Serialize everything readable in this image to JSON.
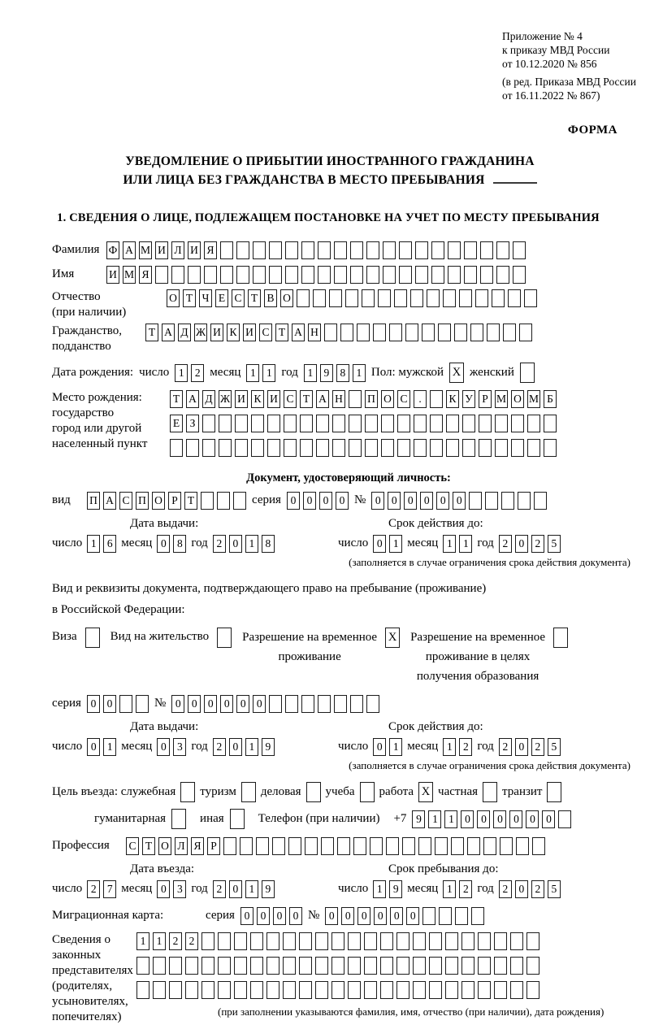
{
  "colors": {
    "ink": "#1c1c1c",
    "paper": "#ffffff"
  },
  "header": {
    "annex": [
      "Приложение № 4",
      "к приказу МВД России",
      "от 10.12.2020 № 856"
    ],
    "annex_note": [
      "(в ред. Приказа МВД России",
      "от 16.11.2022 № 867)"
    ],
    "forma": "ФОРМА"
  },
  "title": {
    "line1": "УВЕДОМЛЕНИЕ О ПРИБЫТИИ ИНОСТРАННОГО ГРАЖДАНИНА",
    "line2": "ИЛИ ЛИЦА БЕЗ ГРАЖДАНСТВА В МЕСТО ПРЕБЫВАНИЯ"
  },
  "section1_heading": "1. СВЕДЕНИЯ О ЛИЦЕ, ПОДЛЕЖАЩЕМ ПОСТАНОВКЕ НА УЧЕТ ПО МЕСТУ ПРЕБЫВАНИЯ",
  "labels": {
    "surname": "Фамилия",
    "name": "Имя",
    "patronymic": "Отчество",
    "patronymic2": "(при наличии)",
    "citizenship1": "Гражданство,",
    "citizenship2": "подданство",
    "birthdate": "Дата рождения:",
    "day": "число",
    "month": "месяц",
    "year": "год",
    "sex_male": "Пол: мужской",
    "sex_female": "женский",
    "birthplace1": "Место рождения:",
    "birthplace2": "государство",
    "birthplace3": "город или другой",
    "birthplace4": "населенный пункт",
    "id_doc_heading": "Документ, удостоверяющий личность:",
    "kind": "вид",
    "series": "серия",
    "number": "№",
    "issue_date": "Дата выдачи:",
    "valid_until": "Срок действия до:",
    "restriction_note": "(заполняется в случае ограничения срока действия документа)",
    "right_doc1": "Вид и реквизиты документа, подтверждающего право на пребывание (проживание)",
    "right_doc2": "в Российской Федерации:",
    "visa": "Виза",
    "residence_permit": "Вид на жительство",
    "temp_res1": "Разрешение на временное",
    "temp_res2": "проживание",
    "temp_edu1": "Разрешение на временное",
    "temp_edu2": "проживание в целях",
    "temp_edu3": "получения образования",
    "purpose": "Цель въезда: служебная",
    "tourism": "туризм",
    "business": "деловая",
    "study": "учеба",
    "work": "работа",
    "private": "частная",
    "transit": "транзит",
    "humanitarian": "гуманитарная",
    "other": "иная",
    "phone": "Телефон (при наличии)",
    "phone_prefix": "+7",
    "profession": "Профессия",
    "entry_date": "Дата въезда:",
    "stay_until": "Срок пребывания до:",
    "migration_card": "Миграционная карта:",
    "legal1": "Сведения о",
    "legal2": "законных",
    "legal3": "представителях",
    "legal4": "(родителях,",
    "legal5": "усыновителях,",
    "legal6": "попечителях)",
    "legal_note": "(при заполнении указываются фамилия, имя, отчество (при наличии), дата рождения)"
  },
  "fields": {
    "surname": {
      "value": "ФАМИЛИЯ",
      "length": 26
    },
    "name": {
      "value": "ИМЯ",
      "length": 26
    },
    "patronymic": {
      "value": "ОТЧЕСТВО",
      "length": 23
    },
    "citizenship": {
      "value": "ТАДЖИКИСТАН",
      "length": 24
    },
    "birth_day": {
      "value": "12",
      "length": 2
    },
    "birth_month": {
      "value": "11",
      "length": 2
    },
    "birth_year": {
      "value": "1981",
      "length": 4
    },
    "birthplace_row1": {
      "value": "ТАДЖИКИСТАН ПОС. КУРМОМБ",
      "length": 24
    },
    "birthplace_row2": {
      "value": "ЕЗ",
      "length": 24
    },
    "birthplace_row3": {
      "value": "",
      "length": 24
    },
    "doc_kind": {
      "value": "ПАСПОРТ",
      "length": 10
    },
    "doc_series": {
      "value": "0000",
      "length": 4
    },
    "doc_number": {
      "value": "000000",
      "length": 11
    },
    "doc_issue_day": {
      "value": "16",
      "length": 2
    },
    "doc_issue_month": {
      "value": "08",
      "length": 2
    },
    "doc_issue_year": {
      "value": "2018",
      "length": 4
    },
    "doc_valid_day": {
      "value": "01",
      "length": 2
    },
    "doc_valid_month": {
      "value": "11",
      "length": 2
    },
    "doc_valid_year": {
      "value": "2025",
      "length": 4
    },
    "perm_series": {
      "value": "00",
      "length": 4
    },
    "perm_number": {
      "value": "000000",
      "length": 13
    },
    "perm_issue_day": {
      "value": "01",
      "length": 2
    },
    "perm_issue_month": {
      "value": "03",
      "length": 2
    },
    "perm_issue_year": {
      "value": "2019",
      "length": 4
    },
    "perm_valid_day": {
      "value": "01",
      "length": 2
    },
    "perm_valid_month": {
      "value": "12",
      "length": 2
    },
    "perm_valid_year": {
      "value": "2025",
      "length": 4
    },
    "phone": {
      "value": "911000000",
      "length": 10
    },
    "profession": {
      "value": "СТОЛЯР",
      "length": 26
    },
    "entry_day": {
      "value": "27",
      "length": 2
    },
    "entry_month": {
      "value": "03",
      "length": 2
    },
    "entry_year": {
      "value": "2019",
      "length": 4
    },
    "stay_day": {
      "value": "19",
      "length": 2
    },
    "stay_month": {
      "value": "12",
      "length": 2
    },
    "stay_year": {
      "value": "2025",
      "length": 4
    },
    "mig_series": {
      "value": "0000",
      "length": 4
    },
    "mig_number": {
      "value": "000000",
      "length": 10
    },
    "legal_row1": {
      "value": "1122",
      "length": 25
    },
    "legal_row2": {
      "value": "",
      "length": 25
    },
    "legal_row3": {
      "value": "",
      "length": 25
    }
  },
  "checks": {
    "sex_male": {
      "value": "X",
      "length": 1
    },
    "sex_female": {
      "value": "",
      "length": 1
    },
    "visa": {
      "value": "",
      "length": 1
    },
    "residence_permit": {
      "value": "",
      "length": 1
    },
    "temp_residence": {
      "value": "X",
      "length": 1
    },
    "temp_residence_edu": {
      "value": "",
      "length": 1
    },
    "official": {
      "value": "",
      "length": 1
    },
    "tourism": {
      "value": "",
      "length": 1
    },
    "business": {
      "value": "",
      "length": 1
    },
    "study": {
      "value": "",
      "length": 1
    },
    "work": {
      "value": "X",
      "length": 1
    },
    "private": {
      "value": "",
      "length": 1
    },
    "transit": {
      "value": "",
      "length": 1
    },
    "humanitarian": {
      "value": "",
      "length": 1
    },
    "other": {
      "value": "",
      "length": 1
    }
  }
}
